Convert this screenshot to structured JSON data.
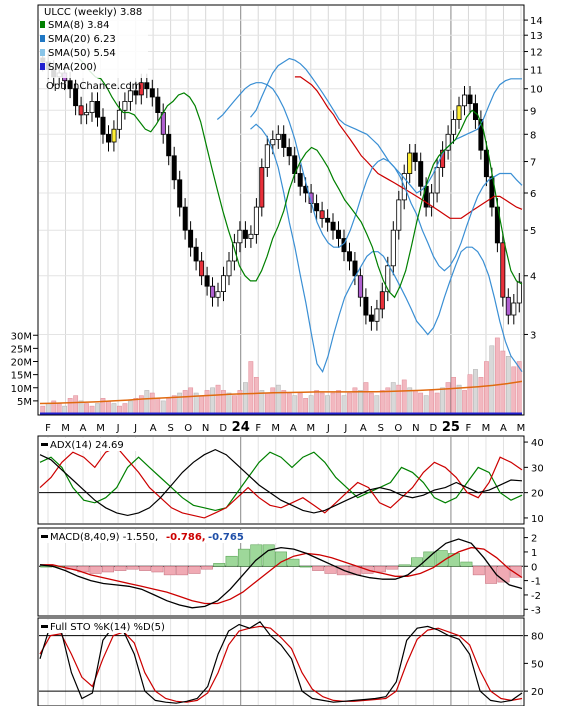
{
  "chart_data": [
    {
      "type": "candlestick",
      "panel": "price",
      "title": "ULCC (weekly) 3.88",
      "watermark": "OptionChance.com",
      "legend": [
        {
          "label": "SMA(8) 3.84",
          "color": "#008000"
        },
        {
          "label": "SMA(20) 6.23",
          "color": "#1f77c4"
        },
        {
          "label": "SMA(50) 5.54",
          "color": "#88c4e8"
        },
        {
          "label": "SMA(200)",
          "color": "#2020d0"
        }
      ],
      "y_scale": "log",
      "ylim": [
        2.4,
        15
      ],
      "y_ticks": [
        "3",
        "4",
        "5",
        "6",
        "7",
        "8",
        "9",
        "10",
        "11",
        "12",
        "13",
        "14"
      ],
      "x_ticks": [
        "F",
        "M",
        "A",
        "M",
        "J",
        "J",
        "A",
        "S",
        "O",
        "N",
        "D",
        "24",
        "F",
        "M",
        "A",
        "M",
        "J",
        "J",
        "A",
        "S",
        "O",
        "N",
        "D",
        "25",
        "F",
        "M",
        "A",
        "M"
      ],
      "close": [
        11.4,
        11.0,
        10.6,
        10.8,
        10.4,
        10.0,
        9.2,
        8.8,
        8.9,
        9.4,
        8.7,
        8.0,
        7.7,
        8.2,
        9.0,
        9.4,
        9.9,
        9.7,
        10.3,
        10.0,
        9.6,
        8.9,
        8.0,
        7.2,
        6.4,
        5.6,
        5.0,
        4.6,
        4.3,
        4.0,
        3.8,
        3.6,
        3.7,
        4.0,
        4.3,
        4.7,
        5.0,
        4.8,
        4.9,
        5.6,
        6.8,
        7.6,
        7.8,
        8.0,
        7.5,
        7.2,
        6.6,
        6.2,
        6.0,
        5.7,
        5.5,
        5.3,
        5.2,
        5.0,
        4.8,
        4.5,
        4.3,
        4.0,
        3.6,
        3.3,
        3.2,
        3.4,
        3.7,
        4.2,
        5.0,
        5.8,
        6.6,
        7.3,
        7.0,
        6.2,
        5.6,
        6.0,
        6.8,
        7.4,
        8.0,
        8.6,
        9.2,
        9.7,
        9.3,
        8.6,
        7.4,
        6.5,
        5.6,
        4.7,
        3.6,
        3.3,
        3.5,
        3.88
      ],
      "sma8": [
        11.6,
        11.3,
        10.9,
        10.6,
        10.5,
        10.1,
        9.6,
        9.2,
        8.9,
        8.9,
        8.8,
        8.5,
        8.2,
        8.1,
        8.4,
        8.8,
        9.2,
        9.4,
        9.7,
        9.8,
        9.6,
        9.2,
        8.5,
        7.6,
        6.8,
        6.1,
        5.5,
        5.0,
        4.6,
        4.2,
        4.0,
        3.9,
        3.9,
        4.1,
        4.4,
        4.8,
        5.1,
        5.5,
        6.1,
        6.6,
        7.0,
        7.3,
        7.5,
        7.4,
        7.1,
        6.8,
        6.4,
        6.1,
        5.8,
        5.6,
        5.4,
        5.2,
        4.9,
        4.6,
        4.2,
        3.9,
        3.7,
        3.6,
        3.8,
        4.1,
        4.6,
        5.2,
        5.8,
        6.4,
        6.9,
        7.2,
        7.4,
        7.6,
        7.8,
        8.2,
        8.7,
        9.0,
        8.8,
        8.2,
        7.2,
        6.2,
        5.3,
        4.6,
        4.1,
        3.9,
        3.84
      ],
      "sma20": [
        8.6,
        8.8,
        9.1,
        9.4,
        9.7,
        10.0,
        10.2,
        10.3,
        10.3,
        10.2,
        10.0,
        9.6,
        9.1,
        8.5,
        7.8,
        7.0,
        6.3,
        5.7,
        5.2,
        4.9,
        4.7,
        4.6,
        4.6,
        4.7,
        5.0,
        5.4,
        5.9,
        6.4,
        6.8,
        7.0,
        7.1,
        7.0,
        6.8,
        6.5,
        6.1,
        5.7,
        5.4,
        5.0,
        4.7,
        4.4,
        4.2,
        4.1,
        4.2,
        4.4,
        4.7,
        5.1,
        5.5,
        5.9,
        6.2,
        6.4,
        6.5,
        6.6,
        6.6,
        6.6,
        6.4,
        6.23
      ],
      "sma50": [
        10.6,
        10.6,
        10.4,
        10.2,
        9.9,
        9.5,
        9.1,
        8.8,
        8.4,
        8.1,
        7.8,
        7.5,
        7.2,
        7.0,
        6.8,
        6.6,
        6.5,
        6.4,
        6.3,
        6.2,
        6.1,
        6.0,
        5.9,
        5.8,
        5.7,
        5.6,
        5.5,
        5.4,
        5.3,
        5.3,
        5.3,
        5.4,
        5.5,
        5.6,
        5.7,
        5.8,
        5.9,
        5.9,
        5.8,
        5.7,
        5.6,
        5.54
      ],
      "bb_upper": [
        8.7,
        9.0,
        9.6,
        10.2,
        10.8,
        11.2,
        11.4,
        11.6,
        11.5,
        11.3,
        11.0,
        10.6,
        10.2,
        9.8,
        9.4,
        9.0,
        8.6,
        8.4,
        8.3,
        8.2,
        8.1,
        8.0,
        7.8,
        7.6,
        7.3,
        7.0,
        6.8,
        6.6,
        6.4,
        6.2,
        6.0,
        6.1,
        6.3,
        6.6,
        7.0,
        7.4,
        7.6,
        7.8,
        7.9,
        8.0,
        8.1,
        8.2,
        8.6,
        9.2,
        9.8,
        10.2,
        10.4,
        10.5,
        10.5,
        10.5
      ],
      "bb_lower": [
        8.2,
        8.4,
        8.2,
        7.9,
        7.4,
        6.8,
        6.0,
        5.2,
        4.6,
        4.0,
        3.5,
        3.0,
        2.6,
        2.5,
        2.7,
        3.0,
        3.3,
        3.6,
        3.8,
        4.0,
        4.2,
        4.4,
        4.5,
        4.5,
        4.4,
        4.2,
        4.0,
        3.8,
        3.6,
        3.4,
        3.2,
        3.1,
        3.0,
        3.1,
        3.3,
        3.6,
        3.9,
        4.2,
        4.5,
        4.6,
        4.6,
        4.5,
        4.3,
        4.0,
        3.6,
        3.2,
        2.9,
        2.7,
        2.6,
        2.5
      ]
    },
    {
      "type": "bar",
      "panel": "volume",
      "y_ticks": [
        "5M",
        "10M",
        "15M",
        "20M",
        "25M",
        "30M"
      ],
      "ylim": [
        0,
        32
      ],
      "values": [
        3,
        4,
        5,
        4,
        3,
        6,
        7,
        5,
        4,
        3,
        4,
        6,
        5,
        4,
        3,
        4,
        5,
        6,
        7,
        9,
        8,
        6,
        5,
        6,
        7,
        8,
        9,
        10,
        8,
        7,
        9,
        10,
        11,
        9,
        8,
        7,
        9,
        12,
        20,
        14,
        9,
        8,
        10,
        11,
        9,
        8,
        7,
        8,
        6,
        7,
        9,
        8,
        7,
        8,
        9,
        7,
        8,
        10,
        9,
        12,
        8,
        7,
        9,
        10,
        12,
        11,
        13,
        10,
        9,
        8,
        7,
        9,
        8,
        10,
        12,
        14,
        11,
        9,
        15,
        17,
        14,
        20,
        26,
        29,
        24,
        22,
        18,
        20
      ],
      "avg": [
        4.0,
        4.1,
        4.3,
        4.5,
        4.7,
        5.0,
        5.3,
        5.7,
        6.0,
        6.3,
        6.6,
        6.9,
        7.2,
        7.5,
        7.7,
        7.9,
        8.1,
        8.2,
        8.3,
        8.4,
        8.4,
        8.4,
        8.5,
        8.5,
        8.6,
        8.8,
        9.0,
        9.3,
        9.6,
        10.0,
        10.4,
        10.9,
        11.6,
        12.4
      ]
    },
    {
      "type": "line",
      "panel": "adx",
      "title": "ADX(14) 24.69",
      "y_ticks": [
        "10",
        "20",
        "30",
        "40"
      ],
      "ylim": [
        8,
        42
      ],
      "series": [
        {
          "color": "#000000",
          "values": [
            35,
            33,
            29,
            25,
            21,
            17,
            14,
            12,
            11,
            12,
            14,
            18,
            23,
            28,
            32,
            35,
            37,
            35,
            31,
            27,
            23,
            20,
            17,
            15,
            13,
            12,
            13,
            15,
            17,
            19,
            21,
            22,
            21,
            19,
            18,
            19,
            21,
            22,
            24,
            22,
            20,
            21,
            23,
            25,
            24.7
          ]
        },
        {
          "color": "#cc0000",
          "values": [
            22,
            26,
            32,
            36,
            34,
            30,
            36,
            38,
            33,
            28,
            22,
            18,
            14,
            12,
            11,
            10,
            12,
            14,
            18,
            22,
            18,
            15,
            14,
            16,
            18,
            15,
            12,
            16,
            20,
            24,
            22,
            16,
            14,
            18,
            22,
            28,
            32,
            30,
            26,
            20,
            18,
            24,
            34,
            32,
            29
          ]
        },
        {
          "color": "#008000",
          "values": [
            32,
            34,
            30,
            22,
            17,
            16,
            18,
            22,
            30,
            34,
            30,
            26,
            22,
            18,
            15,
            14,
            13,
            14,
            20,
            26,
            32,
            36,
            34,
            30,
            34,
            36,
            32,
            26,
            22,
            18,
            20,
            22,
            24,
            30,
            28,
            24,
            18,
            16,
            18,
            24,
            30,
            28,
            20,
            17,
            19
          ]
        }
      ],
      "hline": 20
    },
    {
      "type": "line",
      "panel": "macd",
      "title": "MACD(8,40,9) -1.550,",
      "labels": [
        {
          "text": "-0.786,",
          "color": "#cc0000"
        },
        {
          "text": "-0.765",
          "color": "#1f4fa8"
        }
      ],
      "y_ticks": [
        "-3",
        "-2",
        "-1",
        "0",
        "1",
        "2"
      ],
      "ylim": [
        -3.4,
        2.6
      ],
      "macd": [
        0.1,
        0.0,
        -0.3,
        -0.7,
        -1.0,
        -1.2,
        -1.3,
        -1.4,
        -1.6,
        -2.0,
        -2.4,
        -2.7,
        -2.9,
        -2.8,
        -2.4,
        -1.6,
        -0.6,
        0.4,
        1.1,
        1.3,
        1.2,
        0.9,
        0.5,
        0.1,
        -0.3,
        -0.6,
        -0.8,
        -0.9,
        -0.9,
        -0.6,
        0.1,
        0.9,
        1.6,
        1.9,
        1.6,
        0.6,
        -0.6,
        -1.3,
        -1.55
      ],
      "signal": [
        0.1,
        0.1,
        -0.1,
        -0.3,
        -0.6,
        -0.8,
        -1.0,
        -1.2,
        -1.4,
        -1.6,
        -1.8,
        -2.1,
        -2.4,
        -2.6,
        -2.6,
        -2.3,
        -1.8,
        -1.1,
        -0.4,
        0.3,
        0.7,
        0.9,
        0.8,
        0.6,
        0.3,
        0.0,
        -0.3,
        -0.5,
        -0.7,
        -0.7,
        -0.5,
        -0.1,
        0.5,
        1.0,
        1.3,
        1.2,
        0.6,
        -0.2,
        -0.786
      ],
      "histogram": [
        0.0,
        0.0,
        -0.2,
        -0.4,
        -0.5,
        -0.4,
        -0.3,
        -0.2,
        -0.3,
        -0.4,
        -0.6,
        -0.6,
        -0.5,
        -0.2,
        0.2,
        0.7,
        1.2,
        1.5,
        1.5,
        1.0,
        0.5,
        0.0,
        -0.3,
        -0.5,
        -0.6,
        -0.6,
        -0.5,
        -0.4,
        -0.2,
        0.1,
        0.6,
        1.0,
        1.1,
        0.9,
        0.3,
        -0.6,
        -1.2,
        -1.1,
        -0.765
      ]
    },
    {
      "type": "line",
      "panel": "stochastic",
      "title": "Full STO %K(14) %D(5)",
      "y_ticks": [
        "20",
        "50",
        "80"
      ],
      "ylim": [
        5,
        98
      ],
      "k": [
        55,
        92,
        86,
        40,
        12,
        18,
        75,
        90,
        84,
        60,
        20,
        10,
        8,
        7,
        9,
        12,
        25,
        60,
        85,
        92,
        88,
        95,
        80,
        70,
        55,
        20,
        12,
        10,
        8,
        9,
        10,
        11,
        12,
        14,
        30,
        75,
        88,
        90,
        86,
        80,
        76,
        60,
        20,
        10,
        8,
        10,
        18
      ],
      "d": [
        60,
        80,
        82,
        60,
        35,
        25,
        55,
        80,
        84,
        72,
        40,
        20,
        12,
        9,
        8,
        10,
        18,
        40,
        70,
        85,
        88,
        90,
        88,
        78,
        66,
        40,
        22,
        14,
        10,
        9,
        9,
        10,
        11,
        12,
        20,
        50,
        76,
        86,
        88,
        84,
        80,
        70,
        42,
        20,
        12,
        10,
        12
      ],
      "hlines": [
        20,
        80
      ]
    }
  ]
}
